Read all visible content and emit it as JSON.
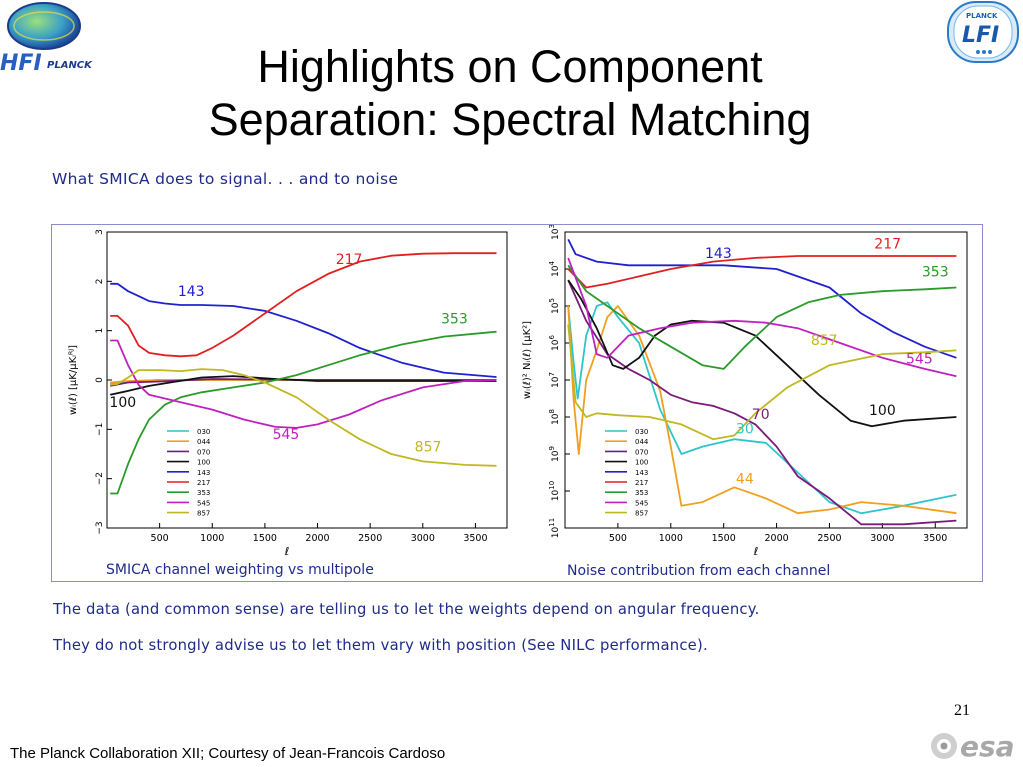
{
  "slide": {
    "title_line1": "Highlights on Component",
    "title_line2": "Separation: Spectral Matching",
    "subtitle": "What SMICA does to signal. . .  and to noise",
    "text_line1": "The data (and common sense) are telling us to let the weights depend on angular frequency.",
    "text_line2": "They do not strongly advise us to let them vary with position (See NILC performance).",
    "page_number": "21",
    "footer": "The Planck Collaboration XII; Courtesy of Jean-Francois Cardoso"
  },
  "logos": {
    "left_text": "HFI",
    "left_sub": "PLANCK",
    "right_top": "PLANCK",
    "right_main": "LFI",
    "esa": "esa"
  },
  "colors": {
    "030": "#2ec4cc",
    "044": "#f0a020",
    "070": "#7a1a7a",
    "100": "#111111",
    "143": "#2020d0",
    "217": "#e02020",
    "353": "#2a9a2a",
    "545": "#c020c0",
    "857": "#c0b820",
    "caption": "#1f2b8c"
  },
  "chart_data": [
    {
      "type": "line",
      "caption": "SMICA channel weighting vs multipole",
      "xlabel": "ℓ",
      "ylabel": "w_i(ℓ) [μK/μK_i^RJ]",
      "xlim": [
        0,
        3800
      ],
      "ylim": [
        -3,
        3
      ],
      "xticks": [
        "500",
        "1000",
        "1500",
        "2000",
        "2500",
        "3000",
        "3500"
      ],
      "yticks": [
        "−3",
        "−2",
        "−1",
        "0",
        "1",
        "2",
        "3"
      ],
      "legend": [
        "030",
        "044",
        "070",
        "100",
        "143",
        "217",
        "353",
        "545",
        "857"
      ],
      "legend_placement": "bottom-left",
      "annotations": [
        "143",
        "217",
        "353",
        "100",
        "545",
        "857"
      ],
      "series": [
        {
          "name": "030",
          "x": [
            30,
            200,
            500,
            1000,
            2000,
            3700
          ],
          "y": [
            -0.08,
            -0.03,
            0.0,
            0.0,
            0.0,
            0.0
          ]
        },
        {
          "name": "044",
          "x": [
            30,
            200,
            500,
            1000,
            2000,
            3700
          ],
          "y": [
            -0.05,
            -0.02,
            0.0,
            0.0,
            0.0,
            0.0
          ]
        },
        {
          "name": "070",
          "x": [
            30,
            200,
            500,
            1000,
            2000,
            3700
          ],
          "y": [
            -0.12,
            -0.05,
            -0.03,
            0.02,
            0.0,
            0.0
          ]
        },
        {
          "name": "100",
          "x": [
            30,
            200,
            400,
            600,
            900,
            1200,
            1600,
            2000,
            2600,
            3200,
            3700
          ],
          "y": [
            -0.3,
            -0.22,
            -0.12,
            -0.05,
            0.05,
            0.08,
            0.02,
            -0.02,
            -0.02,
            -0.02,
            -0.02
          ]
        },
        {
          "name": "143",
          "x": [
            30,
            100,
            200,
            300,
            400,
            550,
            700,
            900,
            1200,
            1500,
            1800,
            2100,
            2400,
            2800,
            3200,
            3700
          ],
          "y": [
            1.95,
            1.95,
            1.8,
            1.7,
            1.6,
            1.55,
            1.52,
            1.52,
            1.5,
            1.4,
            1.2,
            0.95,
            0.65,
            0.35,
            0.15,
            0.06
          ]
        },
        {
          "name": "217",
          "x": [
            30,
            100,
            200,
            300,
            400,
            550,
            700,
            850,
            1000,
            1200,
            1500,
            1800,
            2100,
            2400,
            2700,
            3000,
            3300,
            3700
          ],
          "y": [
            1.3,
            1.3,
            1.1,
            0.7,
            0.55,
            0.5,
            0.48,
            0.5,
            0.65,
            0.9,
            1.35,
            1.8,
            2.15,
            2.4,
            2.52,
            2.56,
            2.57,
            2.57
          ]
        },
        {
          "name": "353",
          "x": [
            30,
            100,
            200,
            300,
            400,
            550,
            700,
            900,
            1200,
            1500,
            1800,
            2100,
            2400,
            2800,
            3200,
            3700
          ],
          "y": [
            -2.3,
            -2.3,
            -1.7,
            -1.2,
            -0.8,
            -0.5,
            -0.35,
            -0.25,
            -0.15,
            -0.05,
            0.1,
            0.3,
            0.5,
            0.72,
            0.88,
            0.98
          ]
        },
        {
          "name": "545",
          "x": [
            30,
            100,
            200,
            300,
            400,
            500,
            700,
            1000,
            1300,
            1600,
            1800,
            2000,
            2300,
            2600,
            3000,
            3400,
            3700
          ],
          "y": [
            0.8,
            0.8,
            0.3,
            -0.1,
            -0.3,
            -0.35,
            -0.45,
            -0.6,
            -0.8,
            -0.95,
            -0.97,
            -0.9,
            -0.7,
            -0.42,
            -0.15,
            -0.02,
            0.0
          ]
        },
        {
          "name": "857",
          "x": [
            30,
            100,
            200,
            300,
            500,
            700,
            900,
            1100,
            1300,
            1500,
            1800,
            2100,
            2400,
            2700,
            3000,
            3400,
            3700
          ],
          "y": [
            -0.1,
            -0.08,
            0.05,
            0.2,
            0.2,
            0.18,
            0.22,
            0.2,
            0.1,
            -0.05,
            -0.35,
            -0.8,
            -1.2,
            -1.5,
            -1.65,
            -1.72,
            -1.74
          ]
        }
      ]
    },
    {
      "type": "line",
      "caption": "Noise contribution from each channel",
      "xlabel": "ℓ",
      "ylabel": "w_i(ℓ)^2 N_i(ℓ) [μK^2]",
      "log_y": true,
      "xlim": [
        0,
        3800
      ],
      "ylim_exponent": [
        -11,
        -3
      ],
      "xticks": [
        "500",
        "1000",
        "1500",
        "2000",
        "2500",
        "3000",
        "3500"
      ],
      "yticks": [
        "10^-3",
        "10^-4",
        "10^-5",
        "10^-6",
        "10^-7",
        "10^-8",
        "10^-9",
        "10^-10",
        "10^-11"
      ],
      "legend": [
        "030",
        "044",
        "070",
        "100",
        "143",
        "217",
        "353",
        "545",
        "857"
      ],
      "legend_placement": "bottom-left",
      "annotations": [
        "143",
        "217",
        "353",
        "857",
        "545",
        "100",
        "70",
        "30",
        "44"
      ],
      "series": [
        {
          "name": "030",
          "log10_y_x": [
            30,
            80,
            120,
            200,
            300,
            400,
            500,
            700,
            900,
            1100,
            1300,
            1600,
            1900,
            2200,
            2500,
            2800,
            3200,
            3700
          ],
          "log10_y": [
            -5.0,
            -6.5,
            -7.5,
            -5.8,
            -5.0,
            -4.9,
            -5.3,
            -6.0,
            -7.8,
            -9.0,
            -8.8,
            -8.6,
            -8.7,
            -9.5,
            -10.3,
            -10.6,
            -10.4,
            -10.1
          ]
        },
        {
          "name": "044",
          "log10_y_x": [
            30,
            80,
            130,
            200,
            300,
            400,
            500,
            700,
            900,
            1000,
            1100,
            1300,
            1600,
            1900,
            2200,
            2500,
            2800,
            3200,
            3700
          ],
          "log10_y": [
            -5.0,
            -7.5,
            -9.0,
            -7.0,
            -6.2,
            -5.3,
            -5.0,
            -5.8,
            -7.3,
            -8.8,
            -10.4,
            -10.3,
            -9.9,
            -10.2,
            -10.6,
            -10.5,
            -10.3,
            -10.4,
            -10.6
          ]
        },
        {
          "name": "070",
          "log10_y_x": [
            30,
            200,
            400,
            600,
            800,
            1000,
            1200,
            1400,
            1600,
            1800,
            2000,
            2200,
            2500,
            2800,
            3200,
            3700
          ],
          "log10_y": [
            -4.3,
            -5.4,
            -6.3,
            -6.7,
            -7.0,
            -7.4,
            -7.6,
            -7.7,
            -7.9,
            -8.2,
            -8.8,
            -9.6,
            -10.2,
            -10.9,
            -10.9,
            -10.8
          ]
        },
        {
          "name": "100",
          "log10_y_x": [
            30,
            150,
            300,
            450,
            550,
            700,
            850,
            1000,
            1200,
            1500,
            1800,
            2100,
            2400,
            2700,
            2900,
            3200,
            3700
          ],
          "log10_y": [
            -4.3,
            -4.8,
            -5.6,
            -6.6,
            -6.7,
            -6.4,
            -5.8,
            -5.5,
            -5.4,
            -5.45,
            -5.8,
            -6.6,
            -7.4,
            -8.1,
            -8.25,
            -8.1,
            -8.0
          ]
        },
        {
          "name": "143",
          "log10_y_x": [
            30,
            100,
            300,
            600,
            1000,
            1500,
            2000,
            2500,
            2800,
            3100,
            3400,
            3700
          ],
          "log10_y": [
            -3.2,
            -3.6,
            -3.8,
            -3.9,
            -3.9,
            -3.9,
            -4.0,
            -4.5,
            -5.2,
            -5.7,
            -6.1,
            -6.4
          ]
        },
        {
          "name": "217",
          "log10_y_x": [
            30,
            200,
            400,
            700,
            1000,
            1400,
            1800,
            2200,
            2600,
            3000,
            3400,
            3700
          ],
          "log10_y": [
            -4.0,
            -4.5,
            -4.4,
            -4.2,
            -4.0,
            -3.8,
            -3.7,
            -3.65,
            -3.65,
            -3.65,
            -3.65,
            -3.65
          ]
        },
        {
          "name": "353",
          "log10_y_x": [
            30,
            200,
            400,
            700,
            1000,
            1300,
            1500,
            1700,
            2000,
            2300,
            2600,
            3000,
            3400,
            3700
          ],
          "log10_y": [
            -3.9,
            -4.6,
            -5.0,
            -5.6,
            -6.1,
            -6.6,
            -6.7,
            -6.1,
            -5.3,
            -4.9,
            -4.7,
            -4.6,
            -4.55,
            -4.5
          ]
        },
        {
          "name": "545",
          "log10_y_x": [
            30,
            200,
            300,
            400,
            600,
            900,
            1200,
            1600,
            1900,
            2200,
            2600,
            3000,
            3400,
            3700
          ],
          "log10_y": [
            -3.7,
            -5.0,
            -6.3,
            -6.4,
            -5.8,
            -5.6,
            -5.45,
            -5.4,
            -5.45,
            -5.6,
            -6.0,
            -6.4,
            -6.7,
            -6.9
          ]
        },
        {
          "name": "857",
          "log10_y_x": [
            30,
            100,
            200,
            300,
            500,
            800,
            1100,
            1400,
            1600,
            1800,
            2100,
            2500,
            3000,
            3400,
            3700
          ],
          "log10_y": [
            -5.5,
            -7.6,
            -8.0,
            -7.9,
            -7.95,
            -8.0,
            -8.2,
            -8.6,
            -8.5,
            -7.9,
            -7.2,
            -6.6,
            -6.3,
            -6.25,
            -6.2
          ]
        }
      ]
    }
  ]
}
